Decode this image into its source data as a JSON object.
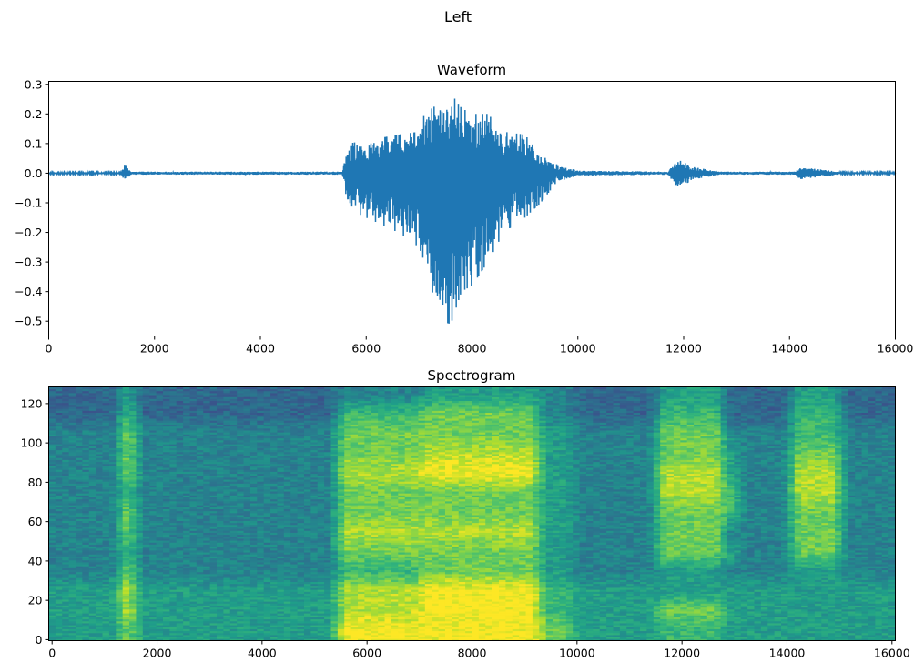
{
  "suptitle": "Left",
  "colors": {
    "waveform": "#1f77b4",
    "colormap": "viridis"
  },
  "chart_data": [
    {
      "type": "line",
      "title": "Waveform",
      "xlim": [
        0,
        16000
      ],
      "ylim": [
        -0.55,
        0.31
      ],
      "xticks": [
        0,
        2000,
        4000,
        6000,
        8000,
        10000,
        12000,
        14000,
        16000
      ],
      "yticks": [
        0.3,
        0.2,
        0.1,
        0.0,
        -0.1,
        -0.2,
        -0.3,
        -0.4,
        -0.5
      ],
      "xtick_labels": [
        "0",
        "2000",
        "4000",
        "6000",
        "8000",
        "10000",
        "12000",
        "14000",
        "16000"
      ],
      "ytick_labels": [
        "0.3",
        "0.2",
        "0.1",
        "0.0",
        "−0.1",
        "−0.2",
        "−0.3",
        "−0.4",
        "−0.5"
      ],
      "grid": false,
      "envelope": [
        [
          0,
          0.003,
          -0.003
        ],
        [
          1350,
          0.003,
          -0.003
        ],
        [
          1450,
          0.03,
          -0.025
        ],
        [
          1550,
          0.005,
          -0.005
        ],
        [
          5550,
          0.005,
          -0.005
        ],
        [
          5650,
          0.1,
          -0.12
        ],
        [
          6000,
          0.11,
          -0.15
        ],
        [
          6600,
          0.13,
          -0.2
        ],
        [
          7000,
          0.14,
          -0.25
        ],
        [
          7100,
          0.2,
          -0.3
        ],
        [
          7400,
          0.24,
          -0.5
        ],
        [
          7600,
          0.27,
          -0.51
        ],
        [
          7800,
          0.22,
          -0.4
        ],
        [
          8000,
          0.2,
          -0.38
        ],
        [
          8300,
          0.2,
          -0.3
        ],
        [
          8600,
          0.14,
          -0.2
        ],
        [
          9000,
          0.13,
          -0.15
        ],
        [
          9300,
          0.06,
          -0.1
        ],
        [
          9600,
          0.03,
          -0.03
        ],
        [
          10000,
          0.008,
          -0.008
        ],
        [
          11700,
          0.005,
          -0.005
        ],
        [
          11900,
          0.045,
          -0.05
        ],
        [
          12200,
          0.02,
          -0.02
        ],
        [
          12700,
          0.005,
          -0.005
        ],
        [
          14100,
          0.005,
          -0.005
        ],
        [
          14200,
          0.02,
          -0.02
        ],
        [
          14700,
          0.01,
          -0.01
        ],
        [
          15000,
          0.003,
          -0.003
        ],
        [
          16000,
          0.003,
          -0.003
        ]
      ]
    },
    {
      "type": "heatmap",
      "title": "Spectrogram",
      "xlim": [
        -64,
        16064
      ],
      "ylim": [
        -0.5,
        128.5
      ],
      "xticks": [
        0,
        2000,
        4000,
        6000,
        8000,
        10000,
        12000,
        14000,
        16000
      ],
      "yticks": [
        0,
        20,
        40,
        60,
        80,
        100,
        120
      ],
      "xtick_labels": [
        "0",
        "2000",
        "4000",
        "6000",
        "8000",
        "10000",
        "12000",
        "14000",
        "16000"
      ],
      "ytick_labels": [
        "0",
        "20",
        "40",
        "60",
        "80",
        "100",
        "120"
      ],
      "grid": false,
      "time_bin_samples": 320,
      "freq_bin_rows": 10,
      "intensity_levels_0_to_9_rows_low_to_high_freq": [
        "55557555555555555999999999999775555566665555555555",
        "55558555555555555888889999999665555577775555555555",
        "55558555555555555888889999999665555555555555555555",
        "44447444444444444666667777777554444455554444555444",
        "44446444444444444777777777777554444477775444777444",
        "44447444444444444888888888888554444477774444777444",
        "44447444444444444777777777777554444477776444777444",
        "44446444444444444777777777777554444488886444888444",
        "44447444444444444888889999999554444488885444888444",
        "44447444444444444777778888888554444477775444777444",
        "44447444444444444777777777777554444477774444666444",
        "33336333333333333666667777777443333366663333666333",
        "33335333333333333444445555555443333355553333555333"
      ]
    }
  ]
}
